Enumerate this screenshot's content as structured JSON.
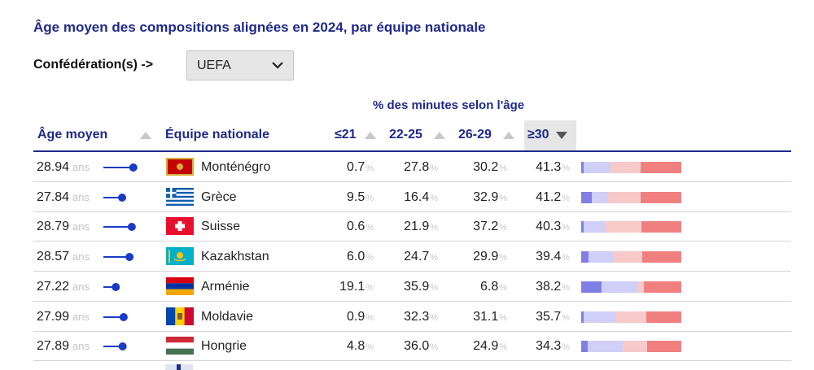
{
  "title": "Âge moyen des compositions alignées en 2024, par équipe nationale",
  "confederation": {
    "label": "Confédération(s) ->",
    "selected": "UEFA"
  },
  "table": {
    "group_header": "% des minutes selon l'âge",
    "columns": {
      "age": "Âge moyen",
      "team": "Équipe nationale",
      "u21": "≤21",
      "a22_25": "22-25",
      "a26_29": "26-29",
      "o30": "≥30"
    },
    "sorted_column": "≥30",
    "unit_age": "ans",
    "unit_pct": "%",
    "rows": [
      {
        "age": "28.94",
        "team": "Monténégro",
        "u21": "0.7",
        "a22_25": "27.8",
        "a26_29": "30.2",
        "o30": "41.3",
        "flag": "montenegro"
      },
      {
        "age": "27.84",
        "team": "Grèce",
        "u21": "9.5",
        "a22_25": "16.4",
        "a26_29": "32.9",
        "o30": "41.2",
        "flag": "greece"
      },
      {
        "age": "28.79",
        "team": "Suisse",
        "u21": "0.6",
        "a22_25": "21.9",
        "a26_29": "37.2",
        "o30": "40.3",
        "flag": "switzerland"
      },
      {
        "age": "28.57",
        "team": "Kazakhstan",
        "u21": "6.0",
        "a22_25": "24.7",
        "a26_29": "29.9",
        "o30": "39.4",
        "flag": "kazakhstan"
      },
      {
        "age": "27.22",
        "team": "Arménie",
        "u21": "19.1",
        "a22_25": "35.9",
        "a26_29": "6.8",
        "o30": "38.2",
        "flag": "armenia"
      },
      {
        "age": "27.99",
        "team": "Moldavie",
        "u21": "0.9",
        "a22_25": "32.3",
        "a26_29": "31.1",
        "o30": "35.7",
        "flag": "moldova"
      },
      {
        "age": "27.89",
        "team": "Hongrie",
        "u21": "4.8",
        "a22_25": "36.0",
        "a26_29": "24.9",
        "o30": "34.3",
        "flag": "hungary"
      }
    ]
  },
  "colors": {
    "accent": "#1f2a8a",
    "dot": "#1a3bc4",
    "u21": "#7f7fe6",
    "a22_25": "#cfcff7",
    "a26_29": "#f7c9c9",
    "o30": "#f08080"
  }
}
